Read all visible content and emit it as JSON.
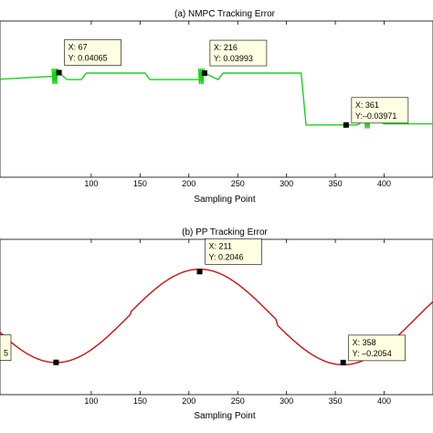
{
  "chart_data": [
    {
      "type": "line",
      "title": "(a) NMPC Tracking Error",
      "xlabel": "Sampling Point",
      "ylabel": "",
      "xlim": [
        0,
        450
      ],
      "ylim": [
        -0.12,
        0.12
      ],
      "x_ticks": [
        100,
        150,
        200,
        250,
        300,
        350,
        400
      ],
      "color": "#19d219",
      "series": [
        {
          "x": [
            0,
            60,
            67,
            75,
            90,
            95,
            155,
            160,
            210,
            216,
            230,
            235,
            315,
            320,
            372,
            378,
            383,
            388,
            395,
            400,
            474
          ],
          "y": [
            0.03,
            0.035,
            0.04065,
            0.03,
            0.03,
            0.04,
            0.04,
            0.03,
            0.03,
            0.03993,
            0.03,
            0.04,
            0.04,
            -0.03971,
            -0.03971,
            -0.035,
            -0.03,
            -0.032,
            -0.035,
            -0.038,
            -0.038
          ]
        }
      ],
      "datatips": [
        {
          "x_text": "X: 67",
          "y_text": "Y: 0.04065",
          "x": 67,
          "y": 0.04065
        },
        {
          "x_text": "X: 216",
          "y_text": "Y: 0.03993",
          "x": 216,
          "y": 0.03993
        },
        {
          "x_text": "X: 361",
          "y_text": "Y:–0.03971",
          "x": 361,
          "y": -0.03971
        }
      ]
    },
    {
      "type": "line",
      "title": "(b) PP Tracking Error",
      "xlabel": "Sampling Point",
      "ylabel": "",
      "xlim": [
        0,
        450
      ],
      "ylim": [
        -0.35,
        0.35
      ],
      "x_ticks": [
        100,
        150,
        200,
        250,
        300,
        350,
        400
      ],
      "color": "#cc1010",
      "amplitude": 0.2054,
      "period": 294,
      "peak_x": 211,
      "datatips": [
        {
          "x_text": "",
          "y_text": "5",
          "x": 64,
          "y": -0.2046
        },
        {
          "x_text": "X: 211",
          "y_text": "Y: 0.2046",
          "x": 211,
          "y": 0.2046
        },
        {
          "x_text": "X: 358",
          "y_text": "Y: –0.2054",
          "x": 358,
          "y": -0.2054
        }
      ]
    }
  ]
}
